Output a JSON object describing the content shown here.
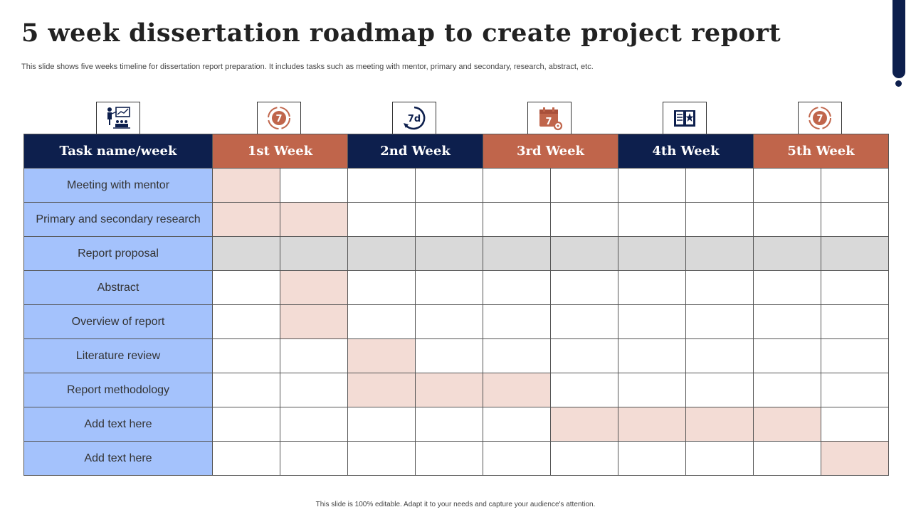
{
  "title": "5 week dissertation roadmap to create project report",
  "subtitle": "This slide shows five weeks timeline for dissertation report preparation. It includes tasks such as meeting with mentor, primary and secondary, research, abstract, etc.",
  "footer": "This slide is 100% editable. Adapt it to your needs and capture your audience's attention.",
  "colors": {
    "navy": "#0d1f4d",
    "rust": "#c0654b",
    "task_bg": "#a4c2fc",
    "filled": "#f3dcd5",
    "gray_row": "#d9d9d9"
  },
  "icons": [
    "presentation-icon",
    "seven-day-cycle-icon",
    "seven-day-clock-icon",
    "calendar-seven-icon",
    "book-star-icon",
    "seven-day-cycle-icon"
  ],
  "table": {
    "headers": [
      "Task name/week",
      "1st Week",
      "2nd Week",
      "3rd Week",
      "4th Week",
      "5th Week"
    ],
    "rows": [
      {
        "task": "Meeting with mentor",
        "cells": [
          1,
          0,
          0,
          0,
          0,
          0,
          0,
          0,
          0,
          0
        ]
      },
      {
        "task": "Primary and secondary research",
        "cells": [
          1,
          1,
          0,
          0,
          0,
          0,
          0,
          0,
          0,
          0
        ]
      },
      {
        "task": "Report proposal",
        "cells": [
          2,
          2,
          2,
          2,
          2,
          2,
          2,
          2,
          2,
          2
        ]
      },
      {
        "task": "Abstract",
        "cells": [
          0,
          1,
          0,
          0,
          0,
          0,
          0,
          0,
          0,
          0
        ]
      },
      {
        "task": "Overview  of report",
        "cells": [
          0,
          1,
          0,
          0,
          0,
          0,
          0,
          0,
          0,
          0
        ]
      },
      {
        "task": "Literature review",
        "cells": [
          0,
          0,
          1,
          0,
          0,
          0,
          0,
          0,
          0,
          0
        ]
      },
      {
        "task": "Report methodology",
        "cells": [
          0,
          0,
          1,
          1,
          1,
          0,
          0,
          0,
          0,
          0
        ]
      },
      {
        "task": "Add text here",
        "cells": [
          0,
          0,
          0,
          0,
          0,
          1,
          1,
          1,
          1,
          0
        ]
      },
      {
        "task": "Add text here",
        "cells": [
          0,
          0,
          0,
          0,
          0,
          0,
          0,
          0,
          0,
          1
        ]
      }
    ]
  }
}
